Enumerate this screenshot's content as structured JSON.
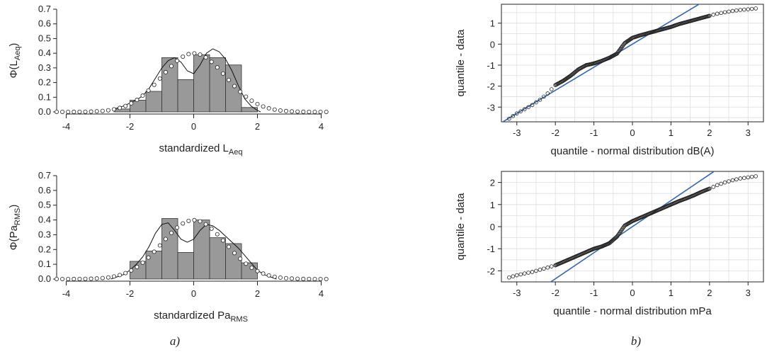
{
  "panel_labels": [
    "a)",
    "b)"
  ],
  "chart_data": [
    {
      "type": "bar",
      "subtype": "histogram-with-density",
      "xlabel": "standardized L",
      "xlabel_sub": "Aeq",
      "ylabel": "Φ(L",
      "ylabel_sub": "Aeq",
      "ylabel_close": ")",
      "xlim": [
        -4.3,
        4.3
      ],
      "ylim": [
        0,
        0.7
      ],
      "xticks": [
        -4,
        -2,
        0,
        2,
        4
      ],
      "yticks": [
        0.0,
        0.1,
        0.2,
        0.3,
        0.4,
        0.5,
        0.6,
        0.7
      ],
      "bin_edges": [
        -2.5,
        -2.0,
        -1.5,
        -1.0,
        -0.5,
        0.0,
        0.5,
        1.0,
        1.5,
        2.0
      ],
      "bin_heights": [
        0.02,
        0.08,
        0.14,
        0.37,
        0.22,
        0.39,
        0.37,
        0.32,
        0.03
      ],
      "normal_curve": {
        "mean": 0,
        "sd": 1,
        "marker": "circle",
        "x_from": -4.3,
        "x_to": 4.3,
        "step": 0.18
      },
      "kde": {
        "x": [
          -2.5,
          -2.2,
          -2.0,
          -1.8,
          -1.6,
          -1.4,
          -1.2,
          -1.0,
          -0.8,
          -0.6,
          -0.4,
          -0.2,
          0.0,
          0.2,
          0.4,
          0.6,
          0.8,
          1.0,
          1.2,
          1.4,
          1.6,
          1.8,
          2.0,
          2.1
        ],
        "y": [
          0.02,
          0.04,
          0.06,
          0.08,
          0.11,
          0.16,
          0.23,
          0.3,
          0.35,
          0.37,
          0.34,
          0.28,
          0.26,
          0.32,
          0.4,
          0.43,
          0.41,
          0.36,
          0.28,
          0.18,
          0.09,
          0.04,
          0.01,
          0.0
        ]
      },
      "colors": {
        "bars": "#999999",
        "bar_edge": "#333333"
      }
    },
    {
      "type": "bar",
      "subtype": "histogram-with-density",
      "xlabel": "standardized Pa",
      "xlabel_sub": "RMS",
      "ylabel": "Φ(Pa",
      "ylabel_sub": "RMS",
      "ylabel_close": ")",
      "xlim": [
        -4.3,
        4.3
      ],
      "ylim": [
        0,
        0.7
      ],
      "xticks": [
        -4,
        -2,
        0,
        2,
        4
      ],
      "yticks": [
        0.0,
        0.1,
        0.2,
        0.3,
        0.4,
        0.5,
        0.6,
        0.7
      ],
      "bin_edges": [
        -2.0,
        -1.5,
        -1.0,
        -0.5,
        0.0,
        0.5,
        1.0,
        1.5,
        2.0
      ],
      "bin_heights": [
        0.12,
        0.19,
        0.41,
        0.18,
        0.4,
        0.28,
        0.24,
        0.11
      ],
      "normal_curve": {
        "mean": 0,
        "sd": 1,
        "marker": "circle",
        "x_from": -4.3,
        "x_to": 4.3,
        "step": 0.18
      },
      "kde": {
        "x": [
          -2.6,
          -2.2,
          -2.0,
          -1.8,
          -1.6,
          -1.4,
          -1.2,
          -1.0,
          -0.8,
          -0.6,
          -0.4,
          -0.2,
          0.0,
          0.2,
          0.4,
          0.6,
          0.8,
          1.0,
          1.2,
          1.4,
          1.6,
          1.8,
          2.0,
          2.2,
          2.6
        ],
        "y": [
          0.0,
          0.03,
          0.06,
          0.1,
          0.15,
          0.22,
          0.31,
          0.37,
          0.38,
          0.33,
          0.27,
          0.25,
          0.27,
          0.33,
          0.37,
          0.36,
          0.33,
          0.29,
          0.25,
          0.21,
          0.16,
          0.11,
          0.06,
          0.03,
          0.0
        ]
      },
      "colors": {
        "bars": "#999999",
        "bar_edge": "#333333"
      }
    },
    {
      "type": "scatter",
      "subtype": "normal-qq",
      "xlabel": "quantile - normal distribution dB(A)",
      "ylabel": "quantile - data",
      "xlim": [
        -3.4,
        3.4
      ],
      "ylim": [
        -3.7,
        1.9
      ],
      "xticks": [
        -3,
        -2,
        -1,
        0,
        1,
        2,
        3
      ],
      "yticks": [
        -3,
        -2,
        -1,
        0,
        1
      ],
      "grid": true,
      "theoretical_quantiles": [
        -3.2,
        -3.0,
        -2.8,
        -2.6,
        -2.4,
        -2.2,
        -2.0,
        -1.8,
        -1.6,
        -1.4,
        -1.2,
        -1.0,
        -0.8,
        -0.6,
        -0.4,
        -0.2,
        0.0,
        0.2,
        0.4,
        0.6,
        0.8,
        1.0,
        1.2,
        1.4,
        1.6,
        1.8,
        2.0,
        2.2,
        2.4,
        2.6,
        2.8,
        3.0,
        3.2
      ],
      "sample_quantiles": [
        -3.55,
        -3.3,
        -3.1,
        -2.9,
        -2.65,
        -2.35,
        -1.95,
        -1.75,
        -1.5,
        -1.2,
        -1.0,
        -0.92,
        -0.8,
        -0.65,
        -0.45,
        0.05,
        0.3,
        0.42,
        0.52,
        0.62,
        0.72,
        0.82,
        0.95,
        1.05,
        1.15,
        1.25,
        1.35,
        1.45,
        1.52,
        1.58,
        1.63,
        1.66,
        1.7
      ],
      "reference_line": {
        "slope": 1.1,
        "intercept": 0.0
      },
      "colors": {
        "reference_line": "#3366aa",
        "points": "#222222",
        "grid": "#dddddd"
      }
    },
    {
      "type": "scatter",
      "subtype": "normal-qq",
      "xlabel": "quantile - normal distribution mPa",
      "ylabel": "quantile - data",
      "xlim": [
        -3.4,
        3.4
      ],
      "ylim": [
        -2.5,
        2.5
      ],
      "xticks": [
        -3,
        -2,
        -1,
        0,
        1,
        2,
        3
      ],
      "yticks": [
        -2,
        -1,
        0,
        1,
        2
      ],
      "grid": true,
      "theoretical_quantiles": [
        -3.2,
        -3.0,
        -2.8,
        -2.6,
        -2.4,
        -2.2,
        -2.0,
        -1.8,
        -1.6,
        -1.4,
        -1.2,
        -1.0,
        -0.8,
        -0.6,
        -0.4,
        -0.2,
        0.0,
        0.2,
        0.4,
        0.6,
        0.8,
        1.0,
        1.2,
        1.4,
        1.6,
        1.8,
        2.0,
        2.2,
        2.4,
        2.6,
        2.8,
        3.0,
        3.2
      ],
      "sample_quantiles": [
        -2.3,
        -2.2,
        -2.12,
        -2.05,
        -1.95,
        -1.85,
        -1.75,
        -1.6,
        -1.45,
        -1.3,
        -1.15,
        -1.0,
        -0.9,
        -0.75,
        -0.45,
        0.05,
        0.25,
        0.4,
        0.55,
        0.7,
        0.85,
        1.0,
        1.15,
        1.28,
        1.42,
        1.58,
        1.72,
        1.88,
        2.0,
        2.1,
        2.18,
        2.23,
        2.28
      ],
      "reference_line": {
        "slope": 1.18,
        "intercept": 0.0
      },
      "colors": {
        "reference_line": "#3366aa",
        "points": "#222222",
        "grid": "#dddddd"
      }
    }
  ]
}
